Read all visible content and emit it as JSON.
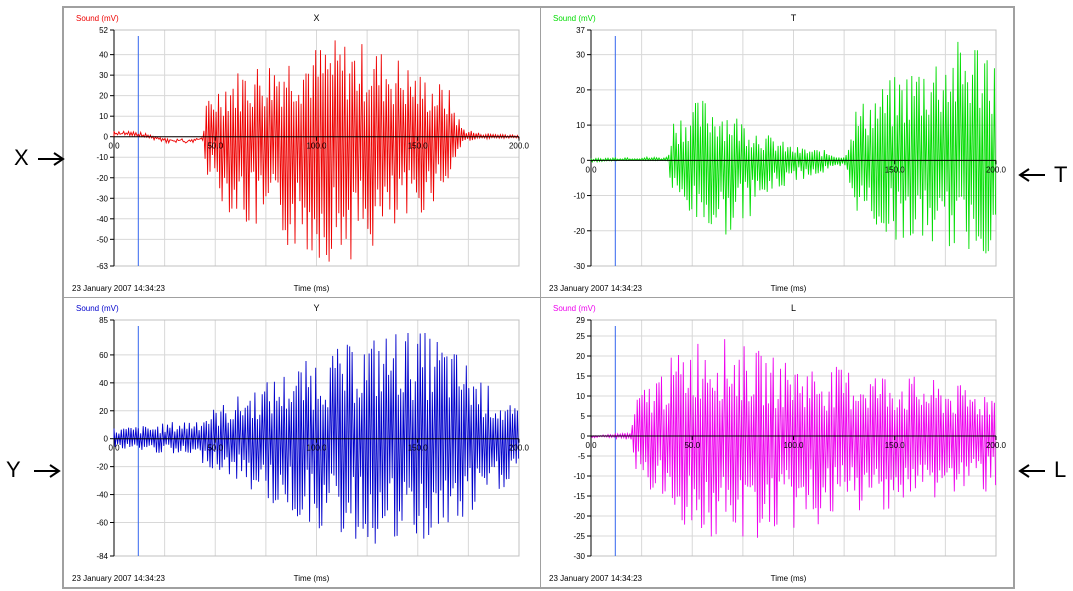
{
  "side_labels": {
    "x": "X",
    "t": "T",
    "y": "Y",
    "l": "L"
  },
  "colors": {
    "x": "#ee0000",
    "t": "#00dd00",
    "y": "#0000cc",
    "l": "#ee00ee",
    "cursor": "#3366ee",
    "grid": "#d8d8d8"
  },
  "chart_data": [
    {
      "type": "line",
      "title": "X",
      "ylabel": "Sound (mV)",
      "xlabel": "Time (ms)",
      "timestamp": "23 January 2007  14:34:23",
      "ylim": [
        -63,
        52
      ],
      "xlim": [
        0,
        200
      ],
      "yticks": [
        "52",
        "40",
        "30",
        "20",
        "10",
        "0",
        "-10",
        "-20",
        "-30",
        "-40",
        "-50",
        "-63"
      ],
      "ytick_values": [
        52,
        40,
        30,
        20,
        10,
        0,
        -10,
        -20,
        -30,
        -40,
        -50,
        -63
      ],
      "xticks": [
        "0.0",
        "50.0",
        "100.0",
        "150.0",
        "200.0"
      ],
      "xtick_values": [
        0,
        50,
        100,
        150,
        200
      ],
      "cursor_x": 12,
      "series": [
        {
          "color": "#ee0000",
          "envelope": [
            [
              0,
              4
            ],
            [
              10,
              3
            ],
            [
              18,
              1
            ],
            [
              25,
              -2
            ],
            [
              35,
              -3
            ],
            [
              44,
              -1
            ],
            [
              46,
              20
            ],
            [
              55,
              30
            ],
            [
              65,
              35
            ],
            [
              75,
              38
            ],
            [
              85,
              42
            ],
            [
              100,
              45
            ],
            [
              110,
              48
            ],
            [
              125,
              46
            ],
            [
              140,
              40
            ],
            [
              150,
              32
            ],
            [
              165,
              25
            ],
            [
              172,
              5
            ],
            [
              180,
              2
            ],
            [
              200,
              1
            ]
          ],
          "envelope_neg": [
            [
              0,
              2
            ],
            [
              10,
              1
            ],
            [
              18,
              -1
            ],
            [
              25,
              -3
            ],
            [
              35,
              -4
            ],
            [
              44,
              -2
            ],
            [
              46,
              -20
            ],
            [
              55,
              -35
            ],
            [
              65,
              -45
            ],
            [
              75,
              -50
            ],
            [
              85,
              -55
            ],
            [
              100,
              -60
            ],
            [
              110,
              -62
            ],
            [
              125,
              -58
            ],
            [
              140,
              -50
            ],
            [
              150,
              -40
            ],
            [
              165,
              -25
            ],
            [
              172,
              -3
            ],
            [
              180,
              -1
            ],
            [
              200,
              -1
            ]
          ]
        }
      ]
    },
    {
      "type": "line",
      "title": "T",
      "ylabel": "Sound (mV)",
      "xlabel": "Time (ms)",
      "timestamp": "23 January 2007  14:34:23",
      "ylim": [
        -30,
        37
      ],
      "xlim": [
        0,
        200
      ],
      "yticks": [
        "37",
        "30",
        "20",
        "10",
        "0",
        "-10",
        "-20",
        "-30"
      ],
      "ytick_values": [
        37,
        30,
        20,
        10,
        0,
        -10,
        -20,
        -30
      ],
      "xticks": [
        "0.0",
        "150.0",
        "200.0"
      ],
      "xtick_values": [
        0,
        150,
        200
      ],
      "cursor_x": 12,
      "series": [
        {
          "color": "#00dd00",
          "envelope": [
            [
              0,
              0.5
            ],
            [
              15,
              1
            ],
            [
              38,
              1
            ],
            [
              40,
              12
            ],
            [
              55,
              18
            ],
            [
              65,
              16
            ],
            [
              75,
              12
            ],
            [
              85,
              8
            ],
            [
              100,
              4
            ],
            [
              115,
              3
            ],
            [
              125,
              1
            ],
            [
              130,
              15
            ],
            [
              145,
              22
            ],
            [
              160,
              28
            ],
            [
              175,
              33
            ],
            [
              190,
              36
            ],
            [
              200,
              36
            ]
          ],
          "envelope_neg": [
            [
              0,
              -0.5
            ],
            [
              15,
              0
            ],
            [
              38,
              0
            ],
            [
              40,
              -12
            ],
            [
              55,
              -20
            ],
            [
              65,
              -22
            ],
            [
              75,
              -18
            ],
            [
              85,
              -12
            ],
            [
              100,
              -6
            ],
            [
              115,
              -4
            ],
            [
              125,
              -2
            ],
            [
              130,
              -14
            ],
            [
              145,
              -22
            ],
            [
              160,
              -24
            ],
            [
              175,
              -25
            ],
            [
              190,
              -27
            ],
            [
              200,
              -27
            ]
          ]
        }
      ]
    },
    {
      "type": "line",
      "title": "Y",
      "ylabel": "Sound (mV)",
      "xlabel": "Time (ms)",
      "timestamp": "23 January 2007  14:34:23",
      "ylim": [
        -84,
        85
      ],
      "xlim": [
        0,
        200
      ],
      "yticks": [
        "85",
        "60",
        "40",
        "20",
        "0",
        "-20",
        "-40",
        "-60",
        "-84"
      ],
      "ytick_values": [
        85,
        60,
        40,
        20,
        0,
        -20,
        -40,
        -60,
        -84
      ],
      "xticks": [
        "0.0",
        "50.0",
        "100.0",
        "150.0",
        "200.0"
      ],
      "xtick_values": [
        0,
        50,
        100,
        150,
        200
      ],
      "cursor_x": 12,
      "series": [
        {
          "color": "#0000cc",
          "envelope": [
            [
              0,
              8
            ],
            [
              20,
              10
            ],
            [
              40,
              15
            ],
            [
              60,
              30
            ],
            [
              80,
              45
            ],
            [
              100,
              60
            ],
            [
              120,
              70
            ],
            [
              140,
              80
            ],
            [
              160,
              75
            ],
            [
              175,
              55
            ],
            [
              190,
              30
            ],
            [
              200,
              20
            ]
          ],
          "envelope_neg": [
            [
              0,
              -8
            ],
            [
              20,
              -10
            ],
            [
              40,
              -15
            ],
            [
              60,
              -30
            ],
            [
              80,
              -50
            ],
            [
              100,
              -65
            ],
            [
              120,
              -75
            ],
            [
              140,
              -80
            ],
            [
              160,
              -75
            ],
            [
              175,
              -60
            ],
            [
              190,
              -40
            ],
            [
              200,
              -25
            ]
          ]
        }
      ]
    },
    {
      "type": "line",
      "title": "L",
      "ylabel": "Sound (mV)",
      "xlabel": "Time (ms)",
      "timestamp": "23 January 2007  14:34:23",
      "ylim": [
        -30,
        29
      ],
      "xlim": [
        0,
        200
      ],
      "yticks": [
        "29",
        "25",
        "20",
        "15",
        "10",
        "5",
        "0",
        "-5",
        "-10",
        "-15",
        "-20",
        "-25",
        "-30"
      ],
      "ytick_values": [
        29,
        25,
        20,
        15,
        10,
        5,
        0,
        -5,
        -10,
        -15,
        -20,
        -25,
        -30
      ],
      "xticks": [
        "0.0",
        "50.0",
        "100.0",
        "150.0",
        "200.0"
      ],
      "xtick_values": [
        0,
        50,
        100,
        150,
        200
      ],
      "cursor_x": 12,
      "series": [
        {
          "color": "#ee00ee",
          "envelope": [
            [
              0,
              0
            ],
            [
              10,
              0.5
            ],
            [
              20,
              1
            ],
            [
              22,
              10
            ],
            [
              40,
              20
            ],
            [
              55,
              26
            ],
            [
              70,
              24
            ],
            [
              90,
              20
            ],
            [
              110,
              18
            ],
            [
              130,
              17
            ],
            [
              150,
              16
            ],
            [
              170,
              14
            ],
            [
              190,
              12
            ],
            [
              200,
              12
            ]
          ],
          "envelope_neg": [
            [
              0,
              -0.5
            ],
            [
              10,
              -0.5
            ],
            [
              20,
              -1
            ],
            [
              22,
              -10
            ],
            [
              40,
              -20
            ],
            [
              55,
              -26
            ],
            [
              70,
              -28
            ],
            [
              90,
              -25
            ],
            [
              110,
              -23
            ],
            [
              130,
              -20
            ],
            [
              150,
              -18
            ],
            [
              170,
              -16
            ],
            [
              190,
              -14
            ],
            [
              200,
              -14
            ]
          ]
        }
      ]
    }
  ]
}
